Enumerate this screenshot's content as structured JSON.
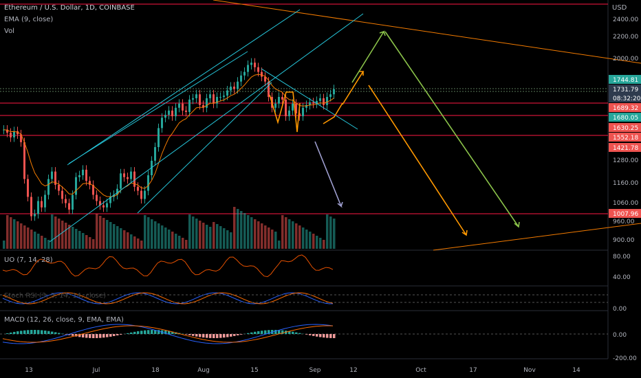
{
  "legend": {
    "symbol": "Ethereum / U.S. Dollar, 1D, COINBASE",
    "ema": "EMA (9, close)",
    "vol": "Vol",
    "uo": "UO (7, 14, 28)",
    "stoch": "Stoch RSI (3, 3, 14, 14, close)",
    "macd": "MACD (12, 26, close, 9, EMA, EMA)"
  },
  "currency": "USD",
  "colors": {
    "background": "#000000",
    "up": "#26a69a",
    "down": "#ef5350",
    "ema": "#f57c00",
    "hline": "#ff1744",
    "channel": "#26c6da",
    "orange_arrow": "#ff9800",
    "green_arrow": "#8bc34a",
    "purple_arrow": "#9e9ecf",
    "macd_line": "#2962ff",
    "signal_line": "#ff6d00",
    "axis_text": "#b2b5be"
  },
  "chart_data": [
    {
      "type": "candlestick",
      "title": "Ethereum / U.S. Dollar, 1D, COINBASE",
      "ylabel": "USD",
      "scale": "log",
      "ylim": [
        860,
        2600
      ],
      "y_ticks": [
        "2400.00",
        "2200.00",
        "2000.00",
        "1280.00",
        "1160.00",
        "1060.00",
        "960.00",
        "900.00"
      ],
      "x_ticks": [
        "13",
        "Jul",
        "18",
        "Aug",
        "15",
        "Sep",
        "12",
        "Oct",
        "17",
        "Nov",
        "14"
      ],
      "series": [
        {
          "name": "EMA (9, close)"
        }
      ],
      "ohlc_closes": [
        1470,
        1450,
        1420,
        1460,
        1440,
        1390,
        1180,
        1090,
        1000,
        1010,
        1070,
        1040,
        1100,
        1180,
        1220,
        1150,
        1120,
        1080,
        1060,
        1030,
        1100,
        1190,
        1200,
        1230,
        1170,
        1150,
        1100,
        1070,
        1050,
        1040,
        1060,
        1090,
        1100,
        1130,
        1210,
        1190,
        1180,
        1220,
        1140,
        1120,
        1080,
        1120,
        1200,
        1280,
        1360,
        1480,
        1550,
        1570,
        1600,
        1560,
        1620,
        1650,
        1600,
        1590,
        1680,
        1690,
        1720,
        1640,
        1620,
        1690,
        1720,
        1650,
        1700,
        1700,
        1710,
        1750,
        1780,
        1760,
        1820,
        1870,
        1900,
        1960,
        1980,
        1940,
        1900,
        1860,
        1820,
        1700,
        1620,
        1650,
        1700,
        1680,
        1560,
        1600,
        1650,
        1580,
        1560,
        1620,
        1640,
        1660,
        1650,
        1670,
        1690,
        1640,
        1700,
        1720,
        1760
      ],
      "price_labels": [
        "1744.81",
        "1731.79",
        "08:32:20",
        "1689.32",
        "1680.05",
        "1630.25",
        "1552.18",
        "1421.78",
        "1007.96"
      ]
    },
    {
      "type": "line",
      "title": "UO (7, 14, 28)",
      "y_ticks": [
        "80.00",
        "40.00"
      ]
    },
    {
      "type": "line",
      "title": "Stoch RSI (3, 3, 14, 14, close)",
      "y_ticks": [
        "0.00"
      ]
    },
    {
      "type": "bar",
      "title": "MACD (12, 26, close, 9, EMA, EMA)",
      "y_ticks": [
        "0.00",
        "-200.00"
      ]
    }
  ]
}
